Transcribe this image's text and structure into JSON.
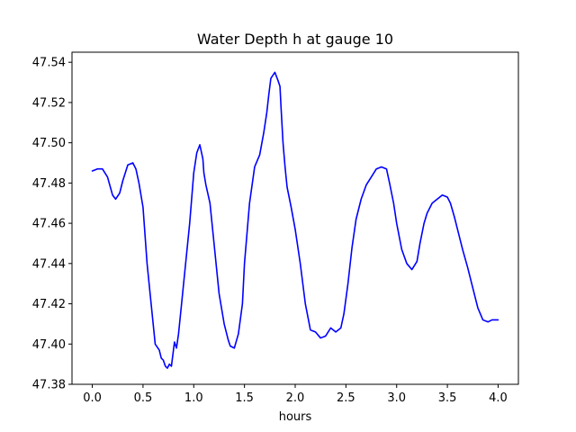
{
  "chart_data": {
    "type": "line",
    "title": "Water Depth h at gauge 10",
    "xlabel": "hours",
    "ylabel": "",
    "xlim": [
      -0.2,
      4.2
    ],
    "ylim": [
      47.38,
      47.545
    ],
    "x_ticks": [
      0.0,
      0.5,
      1.0,
      1.5,
      2.0,
      2.5,
      3.0,
      3.5,
      4.0
    ],
    "x_tick_labels": [
      "0.0",
      "0.5",
      "1.0",
      "1.5",
      "2.0",
      "2.5",
      "3.0",
      "3.5",
      "4.0"
    ],
    "y_ticks": [
      47.38,
      47.4,
      47.42,
      47.44,
      47.46,
      47.48,
      47.5,
      47.52,
      47.54
    ],
    "y_tick_labels": [
      "47.38",
      "47.40",
      "47.42",
      "47.44",
      "47.46",
      "47.48",
      "47.50",
      "47.52",
      "47.54"
    ],
    "grid": false,
    "legend": "none",
    "series": [
      {
        "color": "#0000ff",
        "x": [
          0.0,
          0.05,
          0.1,
          0.15,
          0.2,
          0.23,
          0.27,
          0.3,
          0.35,
          0.4,
          0.43,
          0.46,
          0.5,
          0.54,
          0.58,
          0.62,
          0.66,
          0.68,
          0.7,
          0.72,
          0.74,
          0.76,
          0.78,
          0.81,
          0.83,
          0.85,
          0.86,
          0.88,
          0.92,
          0.96,
          1.0,
          1.03,
          1.06,
          1.09,
          1.1,
          1.12,
          1.16,
          1.2,
          1.25,
          1.3,
          1.34,
          1.36,
          1.4,
          1.44,
          1.48,
          1.5,
          1.55,
          1.6,
          1.65,
          1.69,
          1.72,
          1.74,
          1.76,
          1.8,
          1.83,
          1.85,
          1.86,
          1.88,
          1.9,
          1.92,
          1.96,
          2.0,
          2.05,
          2.1,
          2.15,
          2.2,
          2.25,
          2.3,
          2.35,
          2.4,
          2.45,
          2.48,
          2.52,
          2.56,
          2.6,
          2.65,
          2.7,
          2.75,
          2.8,
          2.85,
          2.9,
          2.93,
          2.97,
          3.0,
          3.05,
          3.1,
          3.15,
          3.2,
          3.23,
          3.27,
          3.3,
          3.35,
          3.4,
          3.45,
          3.5,
          3.53,
          3.57,
          3.6,
          3.65,
          3.7,
          3.75,
          3.8,
          3.85,
          3.9,
          3.94,
          3.97,
          4.0
        ],
        "y": [
          47.486,
          47.487,
          47.487,
          47.483,
          47.474,
          47.472,
          47.475,
          47.481,
          47.489,
          47.49,
          47.487,
          47.48,
          47.468,
          47.44,
          47.42,
          47.4,
          47.397,
          47.393,
          47.392,
          47.389,
          47.388,
          47.39,
          47.389,
          47.401,
          47.398,
          47.405,
          47.41,
          47.42,
          47.44,
          47.46,
          47.485,
          47.495,
          47.499,
          47.492,
          47.485,
          47.479,
          47.47,
          47.45,
          47.425,
          47.41,
          47.402,
          47.399,
          47.398,
          47.405,
          47.42,
          47.44,
          47.47,
          47.488,
          47.494,
          47.505,
          47.515,
          47.524,
          47.532,
          47.535,
          47.531,
          47.528,
          47.518,
          47.5,
          47.488,
          47.478,
          47.468,
          47.457,
          47.44,
          47.42,
          47.407,
          47.406,
          47.403,
          47.404,
          47.408,
          47.406,
          47.408,
          47.415,
          47.43,
          47.448,
          47.462,
          47.472,
          47.479,
          47.483,
          47.487,
          47.488,
          47.487,
          47.48,
          47.47,
          47.46,
          47.447,
          47.44,
          47.437,
          47.441,
          47.45,
          47.46,
          47.465,
          47.47,
          47.472,
          47.474,
          47.473,
          47.47,
          47.463,
          47.457,
          47.447,
          47.438,
          47.428,
          47.418,
          47.412,
          47.411,
          47.412,
          47.412,
          47.412
        ]
      }
    ]
  }
}
